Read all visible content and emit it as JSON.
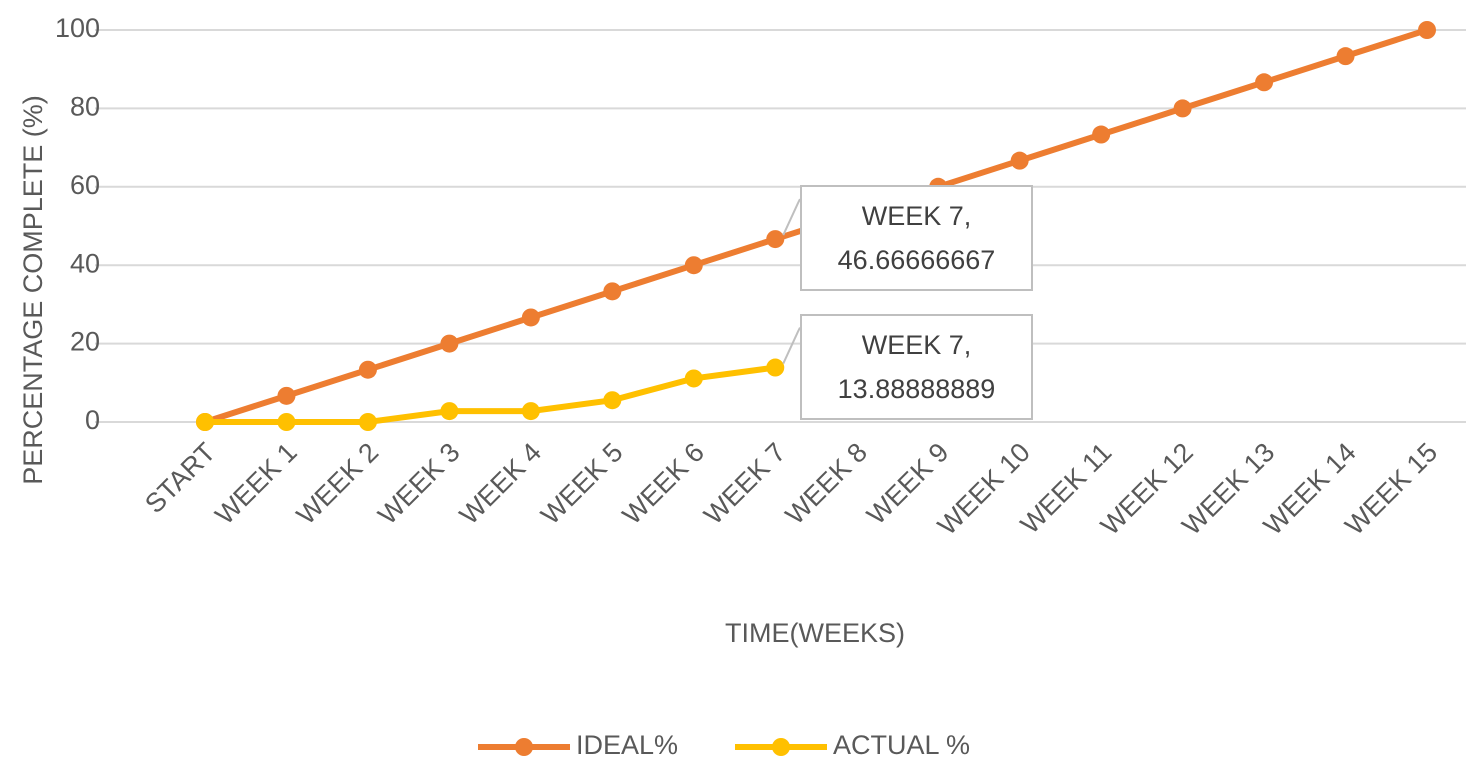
{
  "chart_data": {
    "type": "line",
    "xlabel": "TIME(WEEKS)",
    "ylabel": "PERCENTAGE   COMPLETE  (%)",
    "categories": [
      "START",
      "WEEK 1",
      "WEEK 2",
      "WEEK 3",
      "WEEK 4",
      "WEEK 5",
      "WEEK 6",
      "WEEK 7",
      "WEEK 8",
      "WEEK 9",
      "WEEK 10",
      "WEEK 11",
      "WEEK 12",
      "WEEK 13",
      "WEEK 14",
      "WEEK 15"
    ],
    "series": [
      {
        "name": "IDEAL%",
        "color": "#ed7d31",
        "values": [
          0,
          6.666666667,
          13.33333333,
          20,
          26.66666667,
          33.33333333,
          40,
          46.66666667,
          53.33333333,
          60,
          66.66666667,
          73.33333333,
          80,
          86.66666667,
          93.33333333,
          100
        ],
        "value_labels": [
          null,
          null,
          null,
          null,
          null,
          null,
          null,
          "WEEK 7,\n46.66666667",
          null,
          null,
          null,
          null,
          null,
          null,
          null,
          null
        ]
      },
      {
        "name": "ACTUAL %",
        "color": "#ffc000",
        "values": [
          0,
          0,
          0,
          2.777777778,
          2.777777778,
          5.555555556,
          11.11111111,
          13.88888889,
          null,
          null,
          null,
          null,
          null,
          null,
          null,
          null
        ],
        "value_labels": [
          null,
          null,
          null,
          null,
          null,
          null,
          null,
          "WEEK 7,\n13.88888889",
          null,
          null,
          null,
          null,
          null,
          null,
          null,
          null
        ]
      }
    ],
    "ylim": [
      0,
      100
    ],
    "yticks": [
      0,
      20,
      40,
      60,
      80,
      100
    ],
    "grid": true,
    "legend": "bottom"
  }
}
